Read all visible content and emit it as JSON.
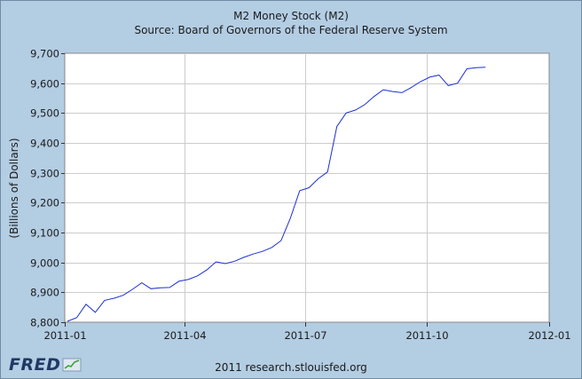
{
  "colors": {
    "background": "#b3cde3",
    "plot_background": "#ffffff",
    "series_line": "#1a2fd6",
    "logo": "#1f3864"
  },
  "logo": {
    "text": "FRED",
    "icon": "chart-line-icon"
  },
  "credit": "2011 research.stlouisfed.org",
  "chart_data": {
    "type": "line",
    "title": "M2 Money Stock (M2)",
    "subtitle": "Source: Board of Governors of the Federal Reserve System",
    "xlabel": "",
    "ylabel": "(Billions of Dollars)",
    "ylim": [
      8800,
      9700
    ],
    "xlim": [
      "2011-01-01",
      "2012-01-01"
    ],
    "grid": true,
    "y_ticks": [
      "8,800",
      "8,900",
      "9,000",
      "9,100",
      "9,200",
      "9,300",
      "9,400",
      "9,500",
      "9,600",
      "9,700"
    ],
    "y_tick_values": [
      8800,
      8900,
      9000,
      9100,
      9200,
      9300,
      9400,
      9500,
      9600,
      9700
    ],
    "x_ticks": [
      "2011-01",
      "2011-04",
      "2011-07",
      "2011-10",
      "2012-01"
    ],
    "x_tick_values": [
      "2011-01-01",
      "2011-04-01",
      "2011-07-01",
      "2011-10-01",
      "2012-01-01"
    ],
    "series": [
      {
        "x": [
          "2011-01-03",
          "2011-01-10",
          "2011-01-17",
          "2011-01-24",
          "2011-01-31",
          "2011-02-07",
          "2011-02-14",
          "2011-02-21",
          "2011-02-28",
          "2011-03-07",
          "2011-03-14",
          "2011-03-21",
          "2011-03-28",
          "2011-04-04",
          "2011-04-11",
          "2011-04-18",
          "2011-04-25",
          "2011-05-02",
          "2011-05-09",
          "2011-05-16",
          "2011-05-23",
          "2011-05-30",
          "2011-06-06",
          "2011-06-13",
          "2011-06-20",
          "2011-06-27",
          "2011-07-04",
          "2011-07-11",
          "2011-07-18",
          "2011-07-25",
          "2011-08-01",
          "2011-08-08",
          "2011-08-15",
          "2011-08-22",
          "2011-08-29",
          "2011-09-05",
          "2011-09-12",
          "2011-09-19",
          "2011-09-26",
          "2011-10-03",
          "2011-10-10",
          "2011-10-17",
          "2011-10-24",
          "2011-10-31",
          "2011-11-07",
          "2011-11-14"
        ],
        "values": [
          8803,
          8815,
          8860,
          8833,
          8873,
          8880,
          8890,
          8910,
          8932,
          8912,
          8915,
          8916,
          8937,
          8943,
          8955,
          8975,
          9002,
          8996,
          9004,
          9017,
          9028,
          9037,
          9050,
          9073,
          9148,
          9240,
          9250,
          9280,
          9303,
          9455,
          9500,
          9510,
          9528,
          9555,
          9578,
          9572,
          9568,
          9585,
          9605,
          9620,
          9627,
          9592,
          9600,
          9648,
          9652,
          9653
        ]
      }
    ]
  }
}
